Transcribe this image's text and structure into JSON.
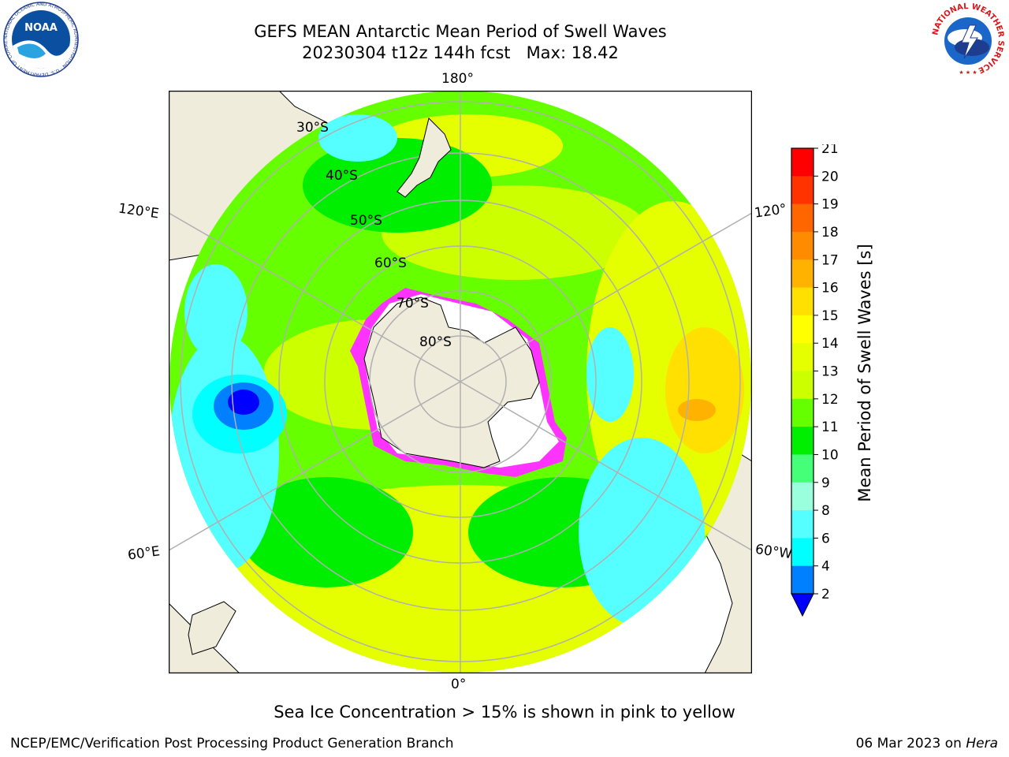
{
  "title": {
    "line1": "GEFS MEAN Antarctic Mean Period of Swell Waves",
    "line2": "20230304 t12z 144h fcst   Max: 18.42"
  },
  "map": {
    "projection": "south polar stereographic",
    "longitude_labels": {
      "top": "180°",
      "bottom": "0°",
      "left_upper": "120°E",
      "left_lower": "60°E",
      "right_upper": "120°",
      "right_lower": "60°W"
    },
    "latitude_labels": [
      "30°S",
      "40°S",
      "50°S",
      "60°S",
      "70°S",
      "80°S"
    ],
    "colors": {
      "land": "#efecdc",
      "ice_edge": "#ff33ff",
      "graticule": "#b0b0b0"
    }
  },
  "colorbar": {
    "label": "Mean Period of Swell Waves [s]",
    "ticks": [
      "21",
      "20",
      "19",
      "18",
      "17",
      "16",
      "15",
      "14",
      "13",
      "12",
      "11",
      "10",
      "9",
      "8",
      "6",
      "4",
      "2"
    ],
    "colors_top_to_bottom": [
      "#ff0000",
      "#ff3300",
      "#ff6600",
      "#ff8c00",
      "#ffb300",
      "#ffe000",
      "#ffff00",
      "#e6ff00",
      "#ccff00",
      "#66ff00",
      "#00ee00",
      "#44ff77",
      "#99ffdd",
      "#55ffff",
      "#00ffff",
      "#0080ff"
    ],
    "extend_color": "#0000ff"
  },
  "caption": "Sea Ice Concentration > 15% is shown in pink to yellow",
  "footer": {
    "credit": "NCEP/EMC/Verification Post Processing Product Generation Branch",
    "date": "06 Mar 2023 on ",
    "machine": "Hera"
  },
  "logos": {
    "noaa": {
      "text": "NOAA",
      "ring": "NATIONAL OCEANIC AND ATMOSPHERIC ADMINISTRATION · U.S. DEPARTMENT OF COMMERCE"
    },
    "nws": {
      "text": "NATIONAL WEATHER SERVICE"
    }
  }
}
